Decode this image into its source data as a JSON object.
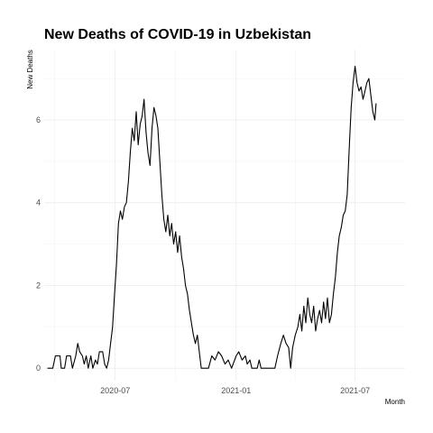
{
  "chart_data": {
    "type": "line",
    "title": "New Deaths of COVID-19 in Uzbekistan",
    "xlabel": "Month",
    "ylabel": "New Deaths",
    "x_ticks": [
      {
        "date": "2020-07-01",
        "label": "2020-07"
      },
      {
        "date": "2021-01-01",
        "label": "2021-01"
      },
      {
        "date": "2021-07-01",
        "label": "2021-07"
      }
    ],
    "y_ticks": [
      0,
      2,
      4,
      6
    ],
    "xlim": [
      "2020-03-15",
      "2021-09-15"
    ],
    "ylim": [
      -0.3,
      7.7
    ],
    "grid": true,
    "series": [
      {
        "color": "#000000",
        "points": [
          [
            "2020-03-20",
            0
          ],
          [
            "2020-03-28",
            0
          ],
          [
            "2020-04-01",
            0.3
          ],
          [
            "2020-04-08",
            0.3
          ],
          [
            "2020-04-10",
            0
          ],
          [
            "2020-04-15",
            0
          ],
          [
            "2020-04-18",
            0.3
          ],
          [
            "2020-04-24",
            0.3
          ],
          [
            "2020-04-27",
            0
          ],
          [
            "2020-05-02",
            0.3
          ],
          [
            "2020-05-05",
            0.6
          ],
          [
            "2020-05-08",
            0.4
          ],
          [
            "2020-05-12",
            0.3
          ],
          [
            "2020-05-15",
            0.1
          ],
          [
            "2020-05-18",
            0.3
          ],
          [
            "2020-05-21",
            0
          ],
          [
            "2020-05-25",
            0.3
          ],
          [
            "2020-05-28",
            0
          ],
          [
            "2020-06-01",
            0.2
          ],
          [
            "2020-06-04",
            0.1
          ],
          [
            "2020-06-07",
            0.4
          ],
          [
            "2020-06-12",
            0.4
          ],
          [
            "2020-06-15",
            0.1
          ],
          [
            "2020-06-18",
            0
          ],
          [
            "2020-06-21",
            0.2
          ],
          [
            "2020-06-24",
            0.6
          ],
          [
            "2020-06-27",
            1.0
          ],
          [
            "2020-06-30",
            1.8
          ],
          [
            "2020-07-03",
            2.5
          ],
          [
            "2020-07-06",
            3.5
          ],
          [
            "2020-07-09",
            3.8
          ],
          [
            "2020-07-12",
            3.6
          ],
          [
            "2020-07-15",
            3.9
          ],
          [
            "2020-07-18",
            4.0
          ],
          [
            "2020-07-21",
            4.5
          ],
          [
            "2020-07-24",
            5.2
          ],
          [
            "2020-07-27",
            5.8
          ],
          [
            "2020-07-30",
            5.5
          ],
          [
            "2020-08-02",
            6.2
          ],
          [
            "2020-08-05",
            5.4
          ],
          [
            "2020-08-08",
            5.9
          ],
          [
            "2020-08-11",
            6.1
          ],
          [
            "2020-08-14",
            6.5
          ],
          [
            "2020-08-17",
            5.7
          ],
          [
            "2020-08-20",
            5.2
          ],
          [
            "2020-08-23",
            4.9
          ],
          [
            "2020-08-26",
            5.8
          ],
          [
            "2020-08-29",
            6.3
          ],
          [
            "2020-09-01",
            6.1
          ],
          [
            "2020-09-04",
            5.8
          ],
          [
            "2020-09-07",
            5.0
          ],
          [
            "2020-09-10",
            4.2
          ],
          [
            "2020-09-13",
            3.6
          ],
          [
            "2020-09-16",
            3.3
          ],
          [
            "2020-09-19",
            3.7
          ],
          [
            "2020-09-22",
            3.2
          ],
          [
            "2020-09-25",
            3.5
          ],
          [
            "2020-09-28",
            3.0
          ],
          [
            "2020-10-01",
            3.3
          ],
          [
            "2020-10-04",
            2.8
          ],
          [
            "2020-10-07",
            3.2
          ],
          [
            "2020-10-10",
            2.7
          ],
          [
            "2020-10-13",
            2.4
          ],
          [
            "2020-10-16",
            2.0
          ],
          [
            "2020-10-19",
            1.8
          ],
          [
            "2020-10-22",
            1.4
          ],
          [
            "2020-10-25",
            1.1
          ],
          [
            "2020-10-28",
            0.8
          ],
          [
            "2020-10-31",
            0.6
          ],
          [
            "2020-11-03",
            0.8
          ],
          [
            "2020-11-06",
            0.4
          ],
          [
            "2020-11-09",
            0
          ],
          [
            "2020-11-20",
            0
          ],
          [
            "2020-11-25",
            0.3
          ],
          [
            "2020-11-30",
            0.2
          ],
          [
            "2020-12-05",
            0.4
          ],
          [
            "2020-12-10",
            0.3
          ],
          [
            "2020-12-15",
            0.1
          ],
          [
            "2020-12-20",
            0.2
          ],
          [
            "2020-12-25",
            0
          ],
          [
            "2021-01-01",
            0.3
          ],
          [
            "2021-01-05",
            0.4
          ],
          [
            "2021-01-10",
            0.2
          ],
          [
            "2021-01-15",
            0.3
          ],
          [
            "2021-01-18",
            0.1
          ],
          [
            "2021-01-22",
            0.2
          ],
          [
            "2021-01-25",
            0
          ],
          [
            "2021-02-02",
            0
          ],
          [
            "2021-02-05",
            0.2
          ],
          [
            "2021-02-08",
            0
          ],
          [
            "2021-03-01",
            0
          ],
          [
            "2021-03-05",
            0.3
          ],
          [
            "2021-03-10",
            0.6
          ],
          [
            "2021-03-14",
            0.8
          ],
          [
            "2021-03-18",
            0.6
          ],
          [
            "2021-03-22",
            0.5
          ],
          [
            "2021-03-25",
            0
          ],
          [
            "2021-03-28",
            0.5
          ],
          [
            "2021-04-01",
            0.8
          ],
          [
            "2021-04-05",
            1.0
          ],
          [
            "2021-04-08",
            1.3
          ],
          [
            "2021-04-11",
            0.9
          ],
          [
            "2021-04-14",
            1.5
          ],
          [
            "2021-04-17",
            1.1
          ],
          [
            "2021-04-20",
            1.7
          ],
          [
            "2021-04-23",
            1.3
          ],
          [
            "2021-04-26",
            1.1
          ],
          [
            "2021-04-29",
            1.5
          ],
          [
            "2021-05-02",
            0.9
          ],
          [
            "2021-05-05",
            1.2
          ],
          [
            "2021-05-08",
            1.4
          ],
          [
            "2021-05-11",
            1.1
          ],
          [
            "2021-05-14",
            1.6
          ],
          [
            "2021-05-17",
            1.2
          ],
          [
            "2021-05-20",
            1.7
          ],
          [
            "2021-05-23",
            1.1
          ],
          [
            "2021-05-26",
            1.3
          ],
          [
            "2021-05-29",
            1.8
          ],
          [
            "2021-06-01",
            2.2
          ],
          [
            "2021-06-04",
            2.8
          ],
          [
            "2021-06-07",
            3.2
          ],
          [
            "2021-06-10",
            3.4
          ],
          [
            "2021-06-13",
            3.7
          ],
          [
            "2021-06-16",
            3.8
          ],
          [
            "2021-06-19",
            4.2
          ],
          [
            "2021-06-22",
            5.3
          ],
          [
            "2021-06-25",
            6.3
          ],
          [
            "2021-06-28",
            6.9
          ],
          [
            "2021-07-01",
            7.3
          ],
          [
            "2021-07-04",
            6.9
          ],
          [
            "2021-07-07",
            6.7
          ],
          [
            "2021-07-10",
            6.8
          ],
          [
            "2021-07-13",
            6.5
          ],
          [
            "2021-07-16",
            6.7
          ],
          [
            "2021-07-19",
            6.9
          ],
          [
            "2021-07-22",
            7.0
          ],
          [
            "2021-07-25",
            6.6
          ],
          [
            "2021-07-28",
            6.2
          ],
          [
            "2021-07-31",
            6.0
          ],
          [
            "2021-08-02",
            6.4
          ]
        ]
      }
    ]
  }
}
